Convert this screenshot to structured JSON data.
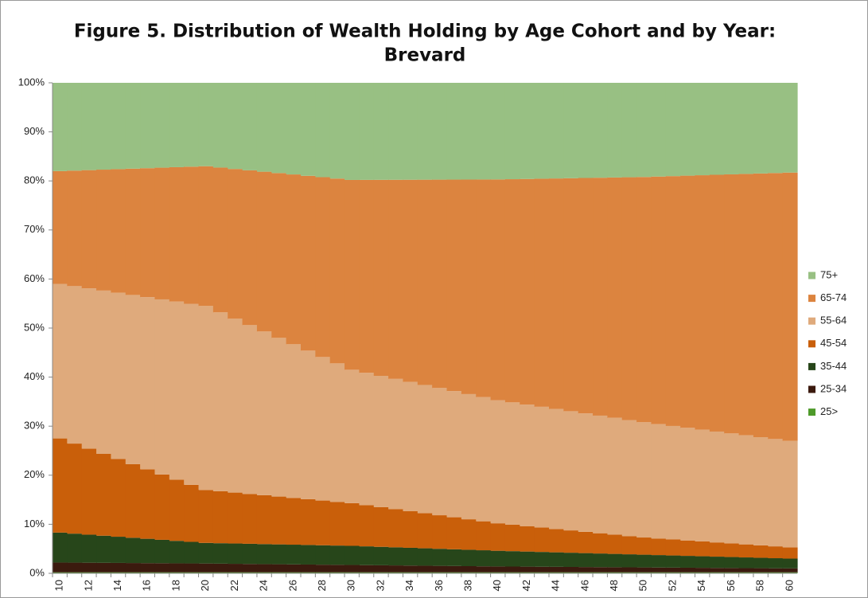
{
  "chart_data": {
    "type": "stacked_area_step",
    "title": [
      "Figure 5. Distribution of Wealth Holding by Age Cohort and by Year:",
      "Brevard"
    ],
    "categories": [
      "10",
      null,
      "12",
      null,
      "14",
      null,
      "16",
      null,
      "18",
      null,
      "20",
      null,
      "22",
      null,
      "24",
      null,
      "26",
      null,
      "28",
      null,
      "30",
      null,
      "32",
      null,
      "34",
      null,
      "36",
      null,
      "38",
      null,
      "40",
      null,
      "42",
      null,
      "44",
      null,
      "46",
      null,
      "48",
      null,
      "50",
      null,
      "52",
      null,
      "54",
      null,
      "56",
      null,
      "58",
      null,
      "60"
    ],
    "ylim": [
      0,
      100
    ],
    "yticks": [
      {
        "value": 0,
        "label": "0%"
      },
      {
        "value": 10,
        "label": "10%"
      },
      {
        "value": 20,
        "label": "20%"
      },
      {
        "value": 30,
        "label": "30%"
      },
      {
        "value": 40,
        "label": "40%"
      },
      {
        "value": 50,
        "label": "50%"
      },
      {
        "value": 60,
        "label": "60%"
      },
      {
        "value": 70,
        "label": "70%"
      },
      {
        "value": 80,
        "label": "80%"
      },
      {
        "value": 90,
        "label": "90%"
      },
      {
        "value": 100,
        "label": "100%"
      }
    ],
    "legend": "right",
    "series": [
      {
        "name": "25>",
        "color": "#4e9a2a",
        "values": [
          0.2,
          0.2,
          0.2,
          0.2,
          0.2,
          0.2,
          0.2,
          0.2,
          0.2,
          0.2,
          0.2,
          0.2,
          0.2,
          0.2,
          0.2,
          0.2,
          0.2,
          0.2,
          0.2,
          0.2,
          0.2,
          0.2,
          0.2,
          0.2,
          0.2,
          0.2,
          0.2,
          0.2,
          0.2,
          0.2,
          0.2,
          0.2,
          0.2,
          0.2,
          0.2,
          0.2,
          0.2,
          0.2,
          0.2,
          0.2,
          0.2,
          0.2,
          0.2,
          0.2,
          0.2,
          0.2,
          0.2,
          0.2,
          0.2,
          0.2,
          0.2
        ]
      },
      {
        "name": "25-34",
        "color": "#3b1a0e",
        "values": [
          2.0,
          1.98,
          1.96,
          1.94,
          1.92,
          1.9,
          1.88,
          1.86,
          1.84,
          1.82,
          1.8,
          1.77,
          1.74,
          1.71,
          1.68,
          1.65,
          1.62,
          1.59,
          1.56,
          1.53,
          1.5,
          1.47,
          1.44,
          1.41,
          1.38,
          1.35,
          1.32,
          1.29,
          1.26,
          1.23,
          1.2,
          1.18,
          1.16,
          1.14,
          1.12,
          1.1,
          1.08,
          1.06,
          1.04,
          1.02,
          1.0,
          0.98,
          0.96,
          0.94,
          0.92,
          0.9,
          0.88,
          0.86,
          0.84,
          0.82,
          0.8
        ]
      },
      {
        "name": "35-44",
        "color": "#27461a",
        "values": [
          6.1,
          5.91,
          5.72,
          5.53,
          5.34,
          5.15,
          4.96,
          4.77,
          4.58,
          4.39,
          4.2,
          4.17,
          4.14,
          4.11,
          4.08,
          4.05,
          4.02,
          3.99,
          3.96,
          3.93,
          3.9,
          3.83,
          3.76,
          3.69,
          3.62,
          3.55,
          3.48,
          3.41,
          3.34,
          3.27,
          3.2,
          3.14,
          3.08,
          3.02,
          2.96,
          2.9,
          2.84,
          2.78,
          2.72,
          2.66,
          2.6,
          2.54,
          2.48,
          2.42,
          2.36,
          2.3,
          2.24,
          2.18,
          2.12,
          2.06,
          2.0
        ]
      },
      {
        "name": "45-54",
        "color": "#c95f0a",
        "values": [
          19.2,
          18.36,
          17.52,
          16.68,
          15.84,
          15,
          14.16,
          13.32,
          12.48,
          11.64,
          10.8,
          10.59,
          10.38,
          10.17,
          9.96,
          9.75,
          9.54,
          9.33,
          9.12,
          8.91,
          8.7,
          8.39,
          8.08,
          7.77,
          7.46,
          7.15,
          6.84,
          6.53,
          6.22,
          5.91,
          5.6,
          5.39,
          5.18,
          4.97,
          4.76,
          4.55,
          4.34,
          4.13,
          3.92,
          3.71,
          3.5,
          3.38,
          3.26,
          3.14,
          3.02,
          2.9,
          2.78,
          2.66,
          2.54,
          2.42,
          2.3
        ]
      },
      {
        "name": "55-64",
        "color": "#dfaa7c",
        "values": [
          31.5,
          32.1,
          32.7,
          33.3,
          33.9,
          34.5,
          35.1,
          35.7,
          36.3,
          36.9,
          37.5,
          36.47,
          35.44,
          34.41,
          33.38,
          32.35,
          31.32,
          30.29,
          29.26,
          28.23,
          27.2,
          26.99,
          26.78,
          26.57,
          26.36,
          26.15,
          25.94,
          25.73,
          25.52,
          25.31,
          25.1,
          24.94,
          24.78,
          24.62,
          24.46,
          24.3,
          24.14,
          23.98,
          23.82,
          23.66,
          23.5,
          23.32,
          23.14,
          22.96,
          22.78,
          22.6,
          22.42,
          22.24,
          22.06,
          21.88,
          21.7
        ]
      },
      {
        "name": "65-74",
        "color": "#dc843f",
        "values": [
          23,
          23.55,
          24.1,
          24.65,
          25.2,
          25.75,
          26.3,
          26.85,
          27.4,
          27.95,
          28.5,
          29.52,
          30.54,
          31.56,
          32.58,
          33.6,
          34.62,
          35.64,
          36.66,
          37.68,
          38.7,
          39.33,
          39.96,
          40.59,
          41.22,
          41.85,
          42.48,
          43.11,
          43.74,
          44.37,
          45,
          45.5,
          46,
          46.5,
          47,
          47.5,
          48,
          48.5,
          49,
          49.5,
          50,
          50.47,
          50.94,
          51.41,
          51.88,
          52.35,
          52.82,
          53.29,
          53.76,
          54.23,
          54.7
        ]
      },
      {
        "name": "75+",
        "color": "#98c083",
        "values": [
          18,
          17.9,
          17.8,
          17.7,
          17.6,
          17.5,
          17.4,
          17.3,
          17.2,
          17.1,
          17.0,
          17.28,
          17.56,
          17.84,
          18.12,
          18.4,
          18.68,
          18.96,
          19.24,
          19.52,
          19.8,
          19.79,
          19.78,
          19.77,
          19.76,
          19.75,
          19.74,
          19.73,
          19.72,
          19.71,
          19.7,
          19.65,
          19.6,
          19.55,
          19.5,
          19.45,
          19.4,
          19.35,
          19.3,
          19.25,
          19.2,
          19.11,
          19.02,
          18.93,
          18.84,
          18.75,
          18.66,
          18.57,
          18.48,
          18.39,
          18.3
        ]
      }
    ]
  }
}
